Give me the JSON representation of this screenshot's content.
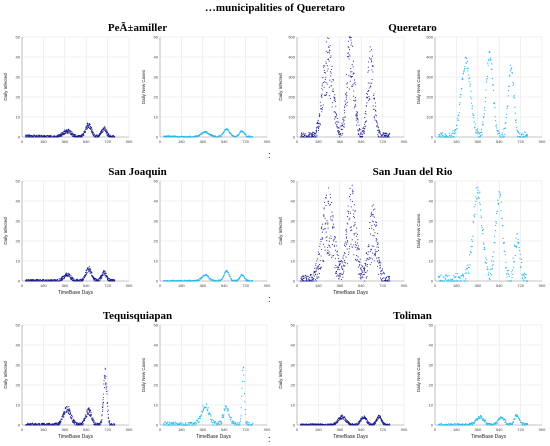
{
  "page_title": "…municipalities of Queretaro",
  "separators": [
    ":",
    ":",
    ":"
  ],
  "chart_data": [
    {
      "type": "scatter",
      "municipality": "PeÃ±amiller",
      "xlabel": "",
      "ylabel": "Daily Infected",
      "xlim": [
        0,
        900
      ],
      "ylim": [
        0,
        50
      ],
      "xticks": [
        0,
        180,
        360,
        540,
        720,
        900
      ],
      "yticks": [
        0,
        10,
        20,
        30,
        40,
        50
      ],
      "color": "#1a1a8c",
      "peaks": [
        [
          60,
          0.4,
          90
        ],
        [
          380,
          3,
          50
        ],
        [
          560,
          6,
          35
        ],
        [
          690,
          4,
          30
        ]
      ],
      "noise": 2.5
    },
    {
      "type": "line",
      "municipality": "PeÃ±amiller",
      "xlabel": "",
      "ylabel": "Daily New Cases",
      "xlim": [
        0,
        900
      ],
      "ylim": [
        0,
        50
      ],
      "xticks": [
        0,
        180,
        360,
        540,
        720,
        900
      ],
      "yticks": [
        0,
        10,
        20,
        30,
        40,
        50
      ],
      "color": "#29b6e8",
      "peaks": [
        [
          60,
          0.3,
          90
        ],
        [
          380,
          2.5,
          50
        ],
        [
          560,
          4,
          35
        ],
        [
          690,
          3,
          30
        ]
      ],
      "noise": 0.4
    },
    {
      "type": "scatter",
      "municipality": "Queretaro",
      "xlabel": "",
      "ylabel": "Daily Infected",
      "xlim": [
        0,
        900
      ],
      "ylim": [
        0,
        500
      ],
      "xticks": [
        0,
        180,
        360,
        540,
        720,
        900
      ],
      "yticks": [
        0,
        100,
        200,
        300,
        400,
        500
      ],
      "color": "#1a1a8c",
      "peaks": [
        [
          260,
          360,
          60
        ],
        [
          450,
          400,
          45
        ],
        [
          620,
          330,
          40
        ]
      ],
      "noise": 70
    },
    {
      "type": "line",
      "municipality": "Queretaro",
      "xlabel": "",
      "ylabel": "Daily New Cases",
      "xlim": [
        0,
        900
      ],
      "ylim": [
        0,
        500
      ],
      "xticks": [
        0,
        180,
        360,
        540,
        720,
        900
      ],
      "yticks": [
        0,
        100,
        200,
        300,
        400,
        500
      ],
      "color": "#29b6e8",
      "peaks": [
        [
          260,
          380,
          55
        ],
        [
          460,
          410,
          40
        ],
        [
          640,
          340,
          35
        ]
      ],
      "noise": 25
    },
    {
      "type": "scatter",
      "municipality": "San Joaquin",
      "xlabel": "TimeBase Days",
      "ylabel": "Daily Infected",
      "xlim": [
        0,
        900
      ],
      "ylim": [
        0,
        50
      ],
      "xticks": [
        0,
        180,
        360,
        540,
        720,
        900
      ],
      "yticks": [
        0,
        10,
        20,
        30,
        40,
        50
      ],
      "color": "#1a1a8c",
      "peaks": [
        [
          380,
          3,
          45
        ],
        [
          560,
          6,
          35
        ],
        [
          690,
          4,
          30
        ]
      ],
      "noise": 2.5
    },
    {
      "type": "line",
      "municipality": "San Joaquin",
      "xlabel": "",
      "ylabel": "",
      "xlim": [
        0,
        900
      ],
      "ylim": [
        0,
        50
      ],
      "xticks": [
        0,
        180,
        360,
        540,
        720,
        900
      ],
      "yticks": [
        0,
        10,
        20,
        30,
        40,
        50
      ],
      "color": "#29b6e8",
      "peaks": [
        [
          380,
          3,
          40
        ],
        [
          560,
          5,
          30
        ],
        [
          690,
          3,
          25
        ]
      ],
      "noise": 0.4
    },
    {
      "type": "scatter",
      "municipality": "San Juan del Rio",
      "xlabel": "TimeBase Days",
      "ylabel": "Daily Infected",
      "xlim": [
        0,
        900
      ],
      "ylim": [
        0,
        50
      ],
      "xticks": [
        0,
        180,
        360,
        540,
        720,
        900
      ],
      "yticks": [
        0,
        10,
        20,
        30,
        40,
        50
      ],
      "color": "#1a1a8c",
      "peaks": [
        [
          260,
          30,
          70
        ],
        [
          460,
          32,
          55
        ],
        [
          640,
          25,
          50
        ]
      ],
      "noise": 10
    },
    {
      "type": "line",
      "municipality": "San Juan del Rio",
      "xlabel": "",
      "ylabel": "Daily New Cases",
      "xlim": [
        0,
        900
      ],
      "ylim": [
        0,
        50
      ],
      "xticks": [
        0,
        180,
        360,
        540,
        720,
        900
      ],
      "yticks": [
        0,
        10,
        20,
        30,
        40,
        50
      ],
      "color": "#29b6e8",
      "peaks": [
        [
          360,
          45,
          55
        ],
        [
          540,
          42,
          45
        ],
        [
          690,
          20,
          35
        ]
      ],
      "noise": 4
    },
    {
      "type": "scatter",
      "municipality": "Tequisquiapan",
      "xlabel": "TimeBase Days",
      "ylabel": "Daily Infected",
      "xlim": [
        0,
        900
      ],
      "ylim": [
        0,
        50
      ],
      "xticks": [
        0,
        180,
        360,
        540,
        720,
        900
      ],
      "yticks": [
        0,
        10,
        20,
        30,
        40,
        50
      ],
      "color": "#1a1a8c",
      "peaks": [
        [
          380,
          8,
          45
        ],
        [
          560,
          7,
          35
        ],
        [
          700,
          25,
          20
        ]
      ],
      "noise": 3
    },
    {
      "type": "line",
      "municipality": "Tequisquiapan",
      "xlabel": "TimeBase Days",
      "ylabel": "Daily New Cases",
      "xlim": [
        0,
        900
      ],
      "ylim": [
        0,
        50
      ],
      "xticks": [
        0,
        180,
        360,
        540,
        720,
        900
      ],
      "yticks": [
        0,
        10,
        20,
        30,
        40,
        50
      ],
      "color": "#29b6e8",
      "peaks": [
        [
          380,
          10,
          45
        ],
        [
          560,
          9,
          35
        ],
        [
          700,
          28,
          15
        ]
      ],
      "noise": 1.5
    },
    {
      "type": "scatter",
      "municipality": "Toliman",
      "xlabel": "TimeBase Days",
      "ylabel": "Daily Infected",
      "xlim": [
        0,
        900
      ],
      "ylim": [
        0,
        50
      ],
      "xticks": [
        0,
        180,
        360,
        540,
        720,
        900
      ],
      "yticks": [
        0,
        10,
        20,
        30,
        40,
        50
      ],
      "color": "#1a1a8c",
      "peaks": [
        [
          380,
          4,
          45
        ],
        [
          560,
          4,
          35
        ],
        [
          690,
          4,
          30
        ]
      ],
      "noise": 2
    },
    {
      "type": "line",
      "municipality": "Toliman",
      "xlabel": "TimeBase Days",
      "ylabel": "Daily New Cases",
      "xlim": [
        0,
        900
      ],
      "ylim": [
        0,
        50
      ],
      "xticks": [
        0,
        180,
        360,
        540,
        720,
        900
      ],
      "yticks": [
        0,
        10,
        20,
        30,
        40,
        50
      ],
      "color": "#29b6e8",
      "peaks": [
        [
          380,
          4,
          45
        ],
        [
          560,
          4,
          35
        ],
        [
          690,
          5,
          30
        ]
      ],
      "noise": 0.8
    }
  ]
}
